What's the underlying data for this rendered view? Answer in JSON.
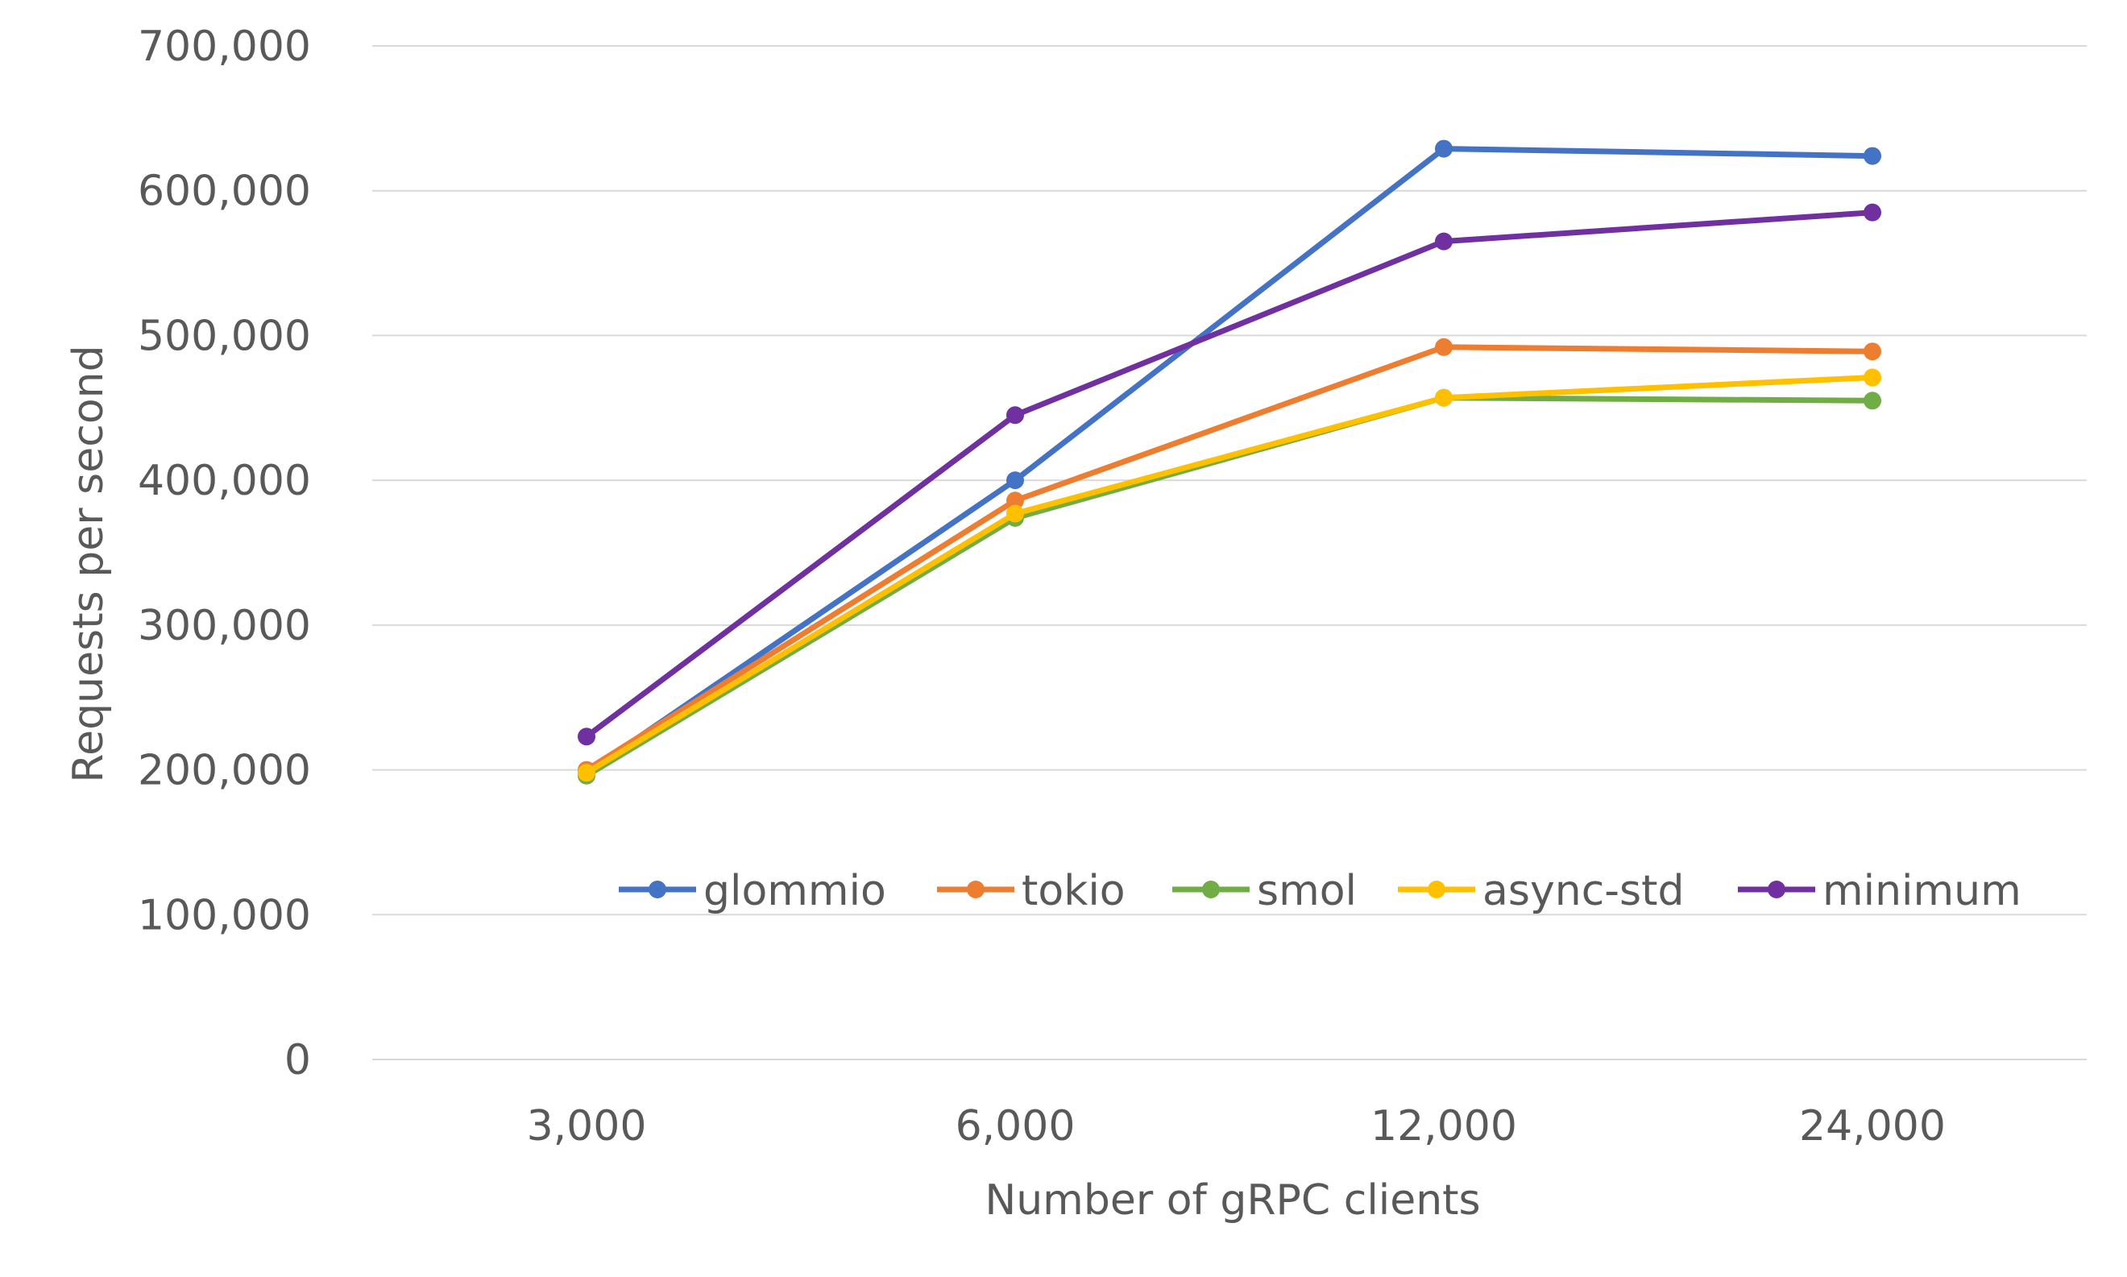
{
  "chart_data": {
    "type": "line",
    "xlabel": "Number of gRPC clients",
    "ylabel": "Requests per second",
    "categories": [
      "3,000",
      "6,000",
      "12,000",
      "24,000"
    ],
    "ylim": [
      0,
      700000
    ],
    "yticks": [
      0,
      100000,
      200000,
      300000,
      400000,
      500000,
      600000,
      700000
    ],
    "ytick_labels": [
      "0",
      "100,000",
      "200,000",
      "300,000",
      "400,000",
      "500,000",
      "600,000",
      "700,000"
    ],
    "grid": "horizontal",
    "legend_position": "inside-bottom",
    "series": [
      {
        "name": "glommio",
        "color": "#4472C4",
        "values": [
          198000,
          400000,
          629000,
          624000
        ]
      },
      {
        "name": "tokio",
        "color": "#ED7D31",
        "values": [
          200000,
          386000,
          492000,
          489000
        ]
      },
      {
        "name": "smol",
        "color": "#70AD47",
        "values": [
          196000,
          374000,
          457000,
          455000
        ]
      },
      {
        "name": "async-std",
        "color": "#FFC000",
        "values": [
          198000,
          377000,
          457000,
          471000
        ]
      },
      {
        "name": "minimum",
        "color": "#7030A0",
        "values": [
          223000,
          445000,
          565000,
          585000
        ]
      }
    ]
  }
}
